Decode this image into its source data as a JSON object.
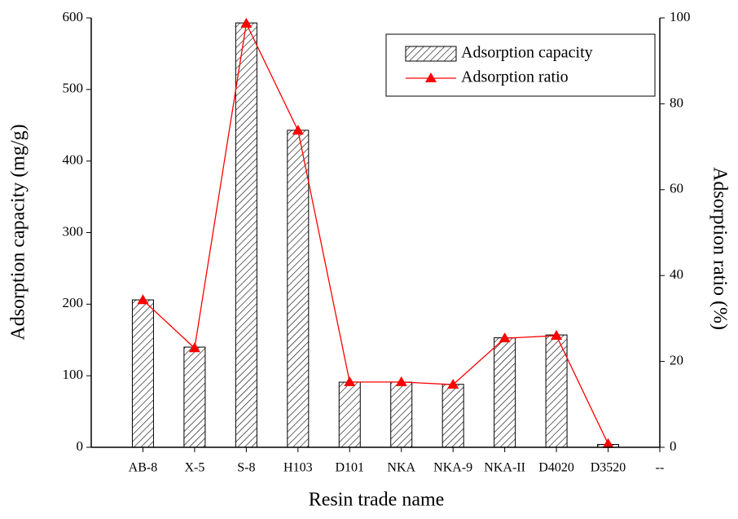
{
  "chart_data": {
    "type": "bar",
    "x_label": "Resin trade name",
    "y_label": "Adsorption capacity (mg/g)",
    "y2_label": "Adsorption ratio (%)",
    "categories": [
      "AB-8",
      "X-5",
      "S-8",
      "H103",
      "D101",
      "NKA",
      "NKA-9",
      "NKA-II",
      "D4020",
      "D3520",
      "--"
    ],
    "series": [
      {
        "name": "Adsorption capacity",
        "type": "bar",
        "color": "#000000",
        "axis": "y",
        "values": [
          206,
          140,
          593,
          443,
          91,
          91,
          88,
          153,
          157,
          4,
          null
        ]
      },
      {
        "name": "Adsorption ratio",
        "type": "line",
        "color": "#ff0000",
        "axis": "y2",
        "values": [
          34.3,
          23.1,
          98.7,
          73.8,
          15.2,
          15.2,
          14.6,
          25.4,
          26,
          0.8,
          null
        ]
      }
    ],
    "ylim": [
      0,
      600
    ],
    "yticks": [
      0,
      100,
      200,
      300,
      400,
      500,
      600
    ],
    "y2lim": [
      0,
      100
    ],
    "y2ticks": [
      0,
      20,
      40,
      60,
      80,
      100
    ],
    "legend": "upper right"
  }
}
